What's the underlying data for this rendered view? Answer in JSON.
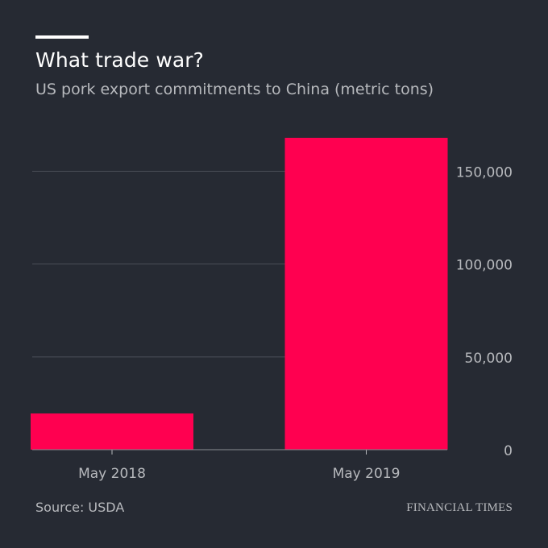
{
  "header": {
    "title": "What trade war?",
    "subtitle": "US pork export commitments to China (metric tons)"
  },
  "footer": {
    "source": "Source: USDA",
    "brand": "FINANCIAL TIMES"
  },
  "colors": {
    "background": "#262a33",
    "bar": "#ff0050",
    "gridline": "#4a4e57",
    "axis_text": "#b7b9bd"
  },
  "chart_data": {
    "type": "bar",
    "categories": [
      "May 2018",
      "May 2019"
    ],
    "values": [
      19500,
      168000
    ],
    "ylim": [
      0,
      168000
    ],
    "yticks": [
      0,
      50000,
      100000,
      150000
    ],
    "ytick_labels": [
      "0",
      "50,000",
      "100,000",
      "150,000"
    ],
    "yaxis_side": "right",
    "grid": true
  }
}
